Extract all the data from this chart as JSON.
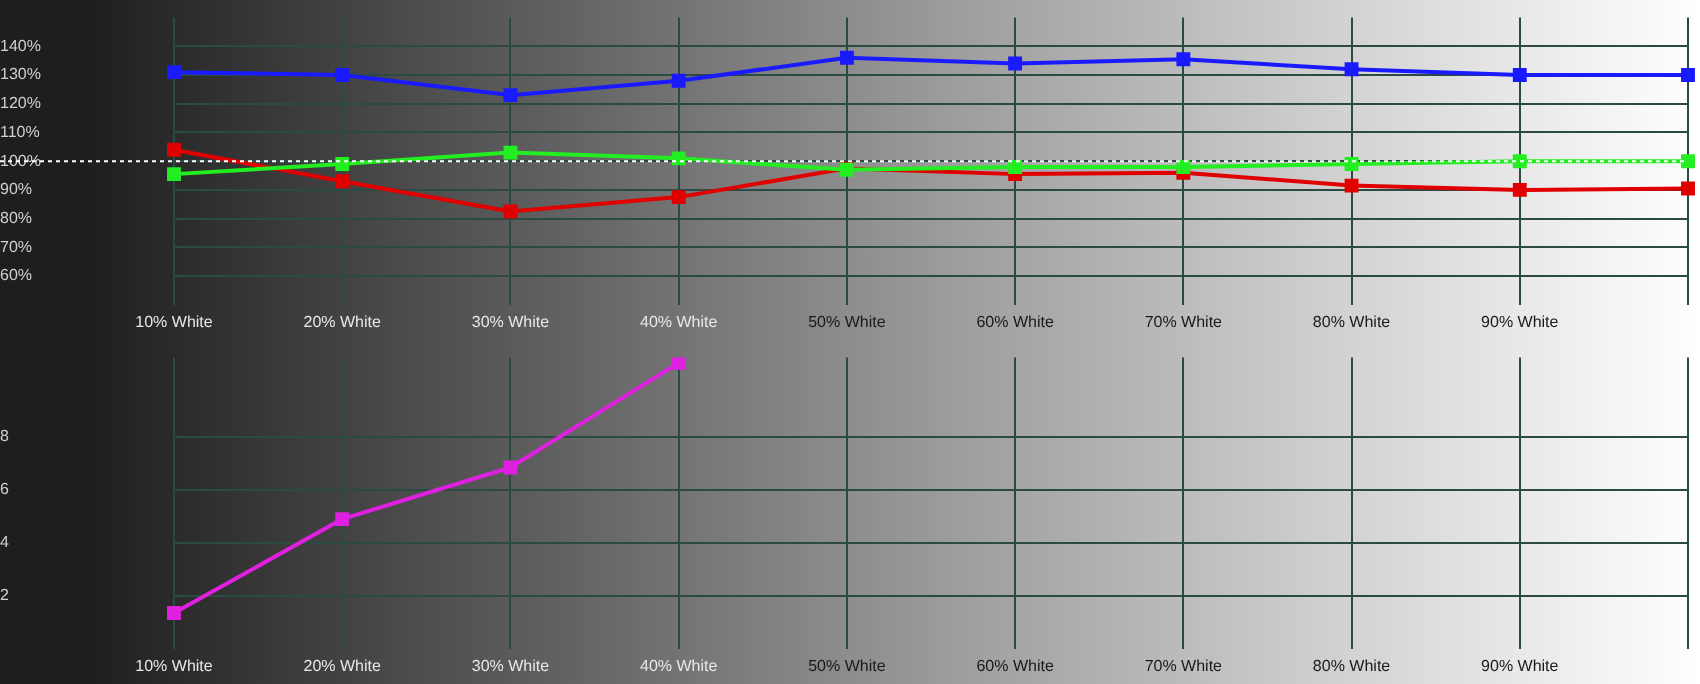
{
  "chart_data": [
    {
      "type": "line",
      "categories": [
        "10% White",
        "20% White",
        "30% White",
        "40% White",
        "50% White",
        "60% White",
        "70% White",
        "80% White",
        "90% White",
        null
      ],
      "series": [
        {
          "color": "#1a1aff",
          "values": [
            131,
            130,
            123,
            128,
            136,
            134,
            135.5,
            132,
            130,
            130
          ]
        },
        {
          "color": "#e00000",
          "values": [
            104,
            93,
            82.5,
            87.5,
            97.5,
            95.5,
            96,
            91.5,
            90,
            90.5
          ]
        },
        {
          "color": "#22ee22",
          "values": [
            95.5,
            99,
            103,
            101,
            97,
            98,
            98,
            99,
            100,
            100
          ]
        }
      ],
      "ylim": [
        50,
        150
      ],
      "yticks": [
        {
          "value": 60,
          "label": "60%"
        },
        {
          "value": 70,
          "label": "70%"
        },
        {
          "value": 80,
          "label": "80%"
        },
        {
          "value": 90,
          "label": "90%"
        },
        {
          "value": 100,
          "label": "100%"
        },
        {
          "value": 110,
          "label": "110%"
        },
        {
          "value": 120,
          "label": "120%"
        },
        {
          "value": 130,
          "label": "130%"
        },
        {
          "value": 140,
          "label": "140%"
        }
      ],
      "ref_lines": [
        {
          "axis": "y",
          "value": 100,
          "color": "#ffffff",
          "line_style": "dotted"
        }
      ],
      "grid": true,
      "legend": false,
      "marker": "square",
      "line_style": "solid"
    },
    {
      "type": "line",
      "categories": [
        "10% White",
        "20% White",
        "30% White",
        "40% White",
        "50% White",
        "60% White",
        "70% White",
        "80% White",
        "90% White",
        null
      ],
      "series": [
        {
          "color": "#e020e0",
          "values": [
            1.35,
            4.9,
            6.85,
            10.8,
            null,
            null,
            null,
            null,
            null,
            null
          ]
        }
      ],
      "ylim": [
        0,
        11
      ],
      "yticks": [
        2,
        4,
        6,
        8
      ],
      "grid": true,
      "legend": false,
      "marker": "square",
      "line_style": "solid"
    }
  ]
}
